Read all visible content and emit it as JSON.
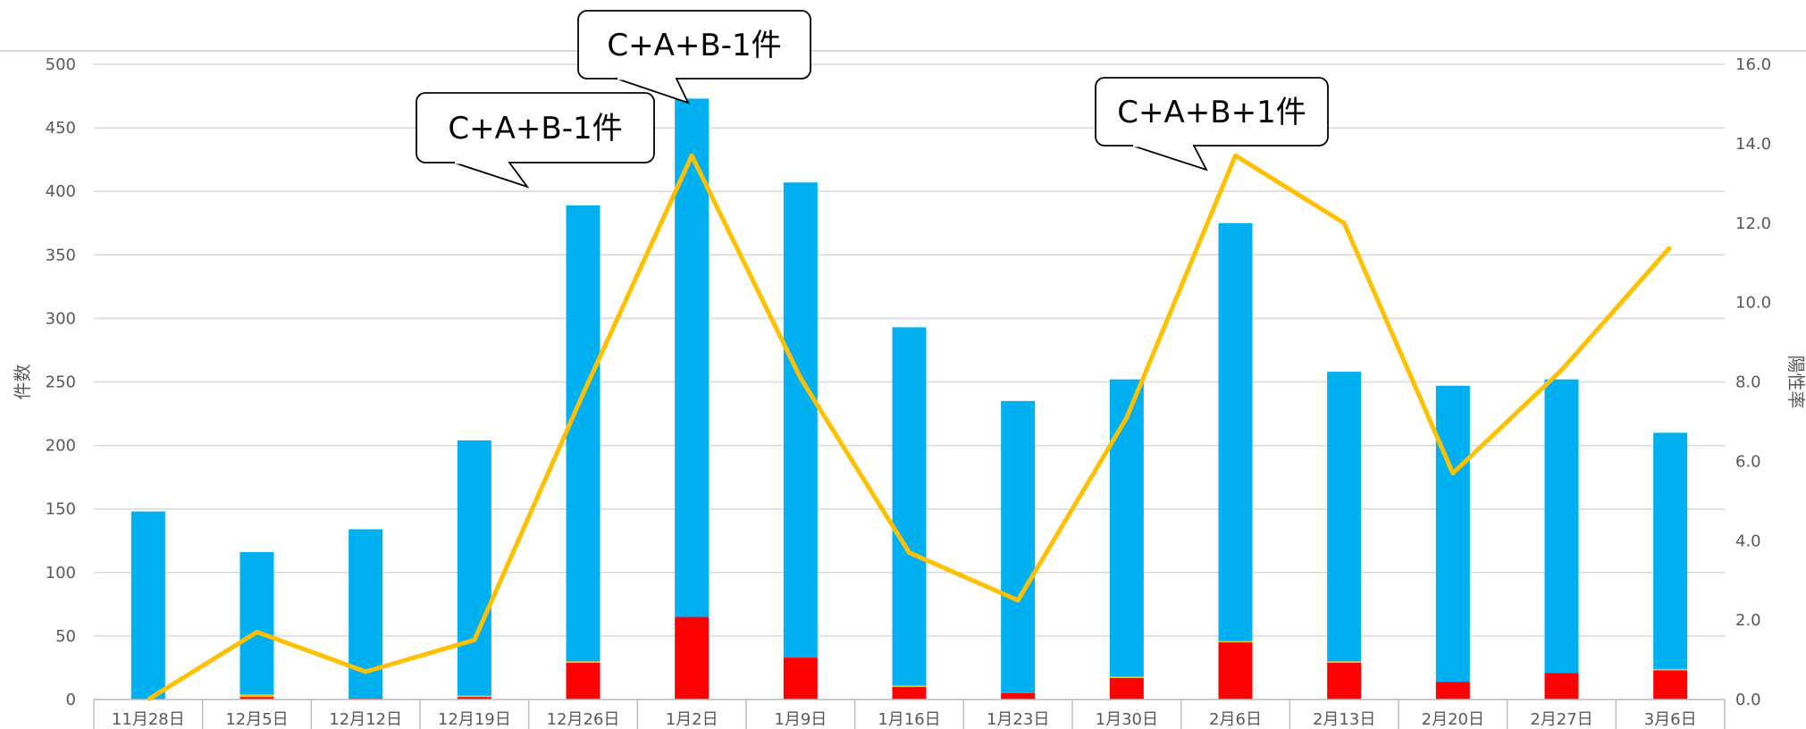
{
  "chart_data": {
    "type": "bar",
    "categories": [
      "11月28日",
      "12月5日",
      "12月12日",
      "12月19日",
      "12月26日",
      "1月2日",
      "1月9日",
      "1月16日",
      "1月23日",
      "1月30日",
      "2月6日",
      "2月13日",
      "2月20日",
      "2月27日",
      "3月6日"
    ],
    "series": [
      {
        "type": "bar",
        "stacked": true,
        "color": "#FF0000",
        "values": [
          0,
          2,
          1,
          2,
          29,
          65,
          33,
          10,
          5,
          17,
          45,
          29,
          14,
          21,
          23
        ]
      },
      {
        "type": "bar",
        "stacked": true,
        "color": "#FFC000",
        "values": [
          0,
          2,
          0,
          1,
          1,
          0,
          0,
          1,
          0,
          1,
          1,
          1,
          0,
          0,
          1
        ]
      },
      {
        "type": "bar",
        "stacked": true,
        "color": "#00B0F0",
        "values": [
          148,
          112,
          133,
          201,
          359,
          408,
          374,
          282,
          230,
          234,
          329,
          228,
          233,
          231,
          186
        ]
      },
      {
        "type": "line",
        "axis": "right",
        "color": "#FFC000",
        "values": [
          0.0,
          1.7,
          0.7,
          1.5,
          7.7,
          13.7,
          8.1,
          3.7,
          2.5,
          7.1,
          13.7,
          12.0,
          5.7,
          8.3,
          11.4
        ]
      }
    ],
    "ylabel": "件数",
    "y2label": "陽性率",
    "ylim": [
      0,
      500
    ],
    "y2lim": [
      0,
      16
    ],
    "yticks": [
      "0",
      "50",
      "100",
      "150",
      "200",
      "250",
      "300",
      "350",
      "400",
      "450",
      "500"
    ],
    "y2ticks": [
      "0.0",
      "2.0",
      "4.0",
      "6.0",
      "8.0",
      "10.0",
      "12.0",
      "14.0",
      "16.0"
    ],
    "grid": true,
    "annotations": [
      {
        "text": "C+A+B-1件",
        "category": "12月26日",
        "value": 388
      },
      {
        "text": "C+A+B-1件",
        "category": "1月2日",
        "value": 472
      },
      {
        "text": "C+A+B+1件",
        "category": "2月6日",
        "value": 13.7,
        "axis": "right"
      }
    ]
  }
}
